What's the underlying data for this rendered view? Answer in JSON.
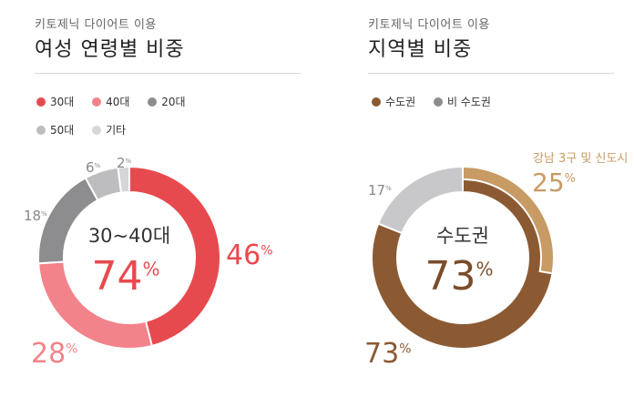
{
  "chart_data": [
    {
      "type": "pie",
      "subtitle": "키토제닉 다이어트 이용",
      "title": "여성 연령별 비중",
      "legend": [
        "30대",
        "40대",
        "20대",
        "50대",
        "기타"
      ],
      "colors": [
        "#e74a4e",
        "#f2838a",
        "#8d8d90",
        "#bdbdbf",
        "#d6d6d8"
      ],
      "values": [
        46,
        28,
        18,
        6,
        2
      ],
      "value_labels": [
        "46",
        "28",
        "18",
        "6",
        "2"
      ],
      "unit": "%",
      "center_label": "30~40대",
      "center_value": "74",
      "center_color": "#e74a4e"
    },
    {
      "type": "pie",
      "subtitle": "키토제닉 다이어트 이용",
      "title": "지역별 비중",
      "legend": [
        "수도권",
        "비 수도권"
      ],
      "colors": [
        "#8b5a33",
        "#c8c8ca"
      ],
      "highlight_color": "#c89a64",
      "values": [
        73,
        17
      ],
      "value_labels": [
        "73",
        "17"
      ],
      "highlight": {
        "label": "강남 3구 및 신도시",
        "value": 25,
        "value_label": "25"
      },
      "unit": "%",
      "center_label": "수도권",
      "center_value": "73",
      "center_color": "#7a4d2a"
    }
  ]
}
